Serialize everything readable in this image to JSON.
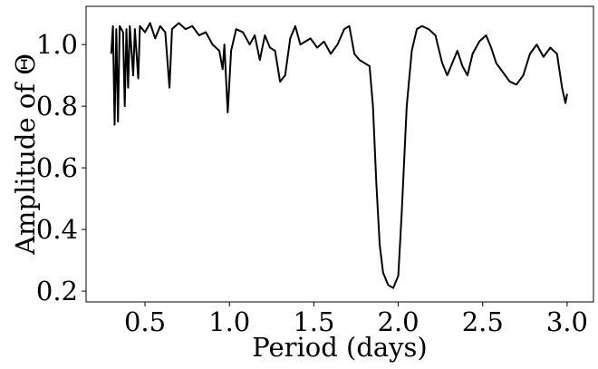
{
  "chart_data": {
    "type": "line",
    "xlabel": "Period (days)",
    "ylabel": "Amplitude of Θ",
    "series": [
      {
        "color": "#000000",
        "x": [
          0.3,
          0.31,
          0.32,
          0.33,
          0.34,
          0.35,
          0.37,
          0.38,
          0.39,
          0.4,
          0.41,
          0.43,
          0.44,
          0.46,
          0.47,
          0.5,
          0.53,
          0.56,
          0.59,
          0.62,
          0.645,
          0.66,
          0.7,
          0.74,
          0.78,
          0.82,
          0.86,
          0.9,
          0.94,
          0.96,
          0.97,
          0.99,
          1.01,
          1.04,
          1.08,
          1.12,
          1.15,
          1.18,
          1.21,
          1.24,
          1.27,
          1.3,
          1.33,
          1.36,
          1.39,
          1.42,
          1.45,
          1.48,
          1.52,
          1.56,
          1.6,
          1.64,
          1.68,
          1.71,
          1.74,
          1.77,
          1.8,
          1.83,
          1.85,
          1.87,
          1.89,
          1.91,
          1.94,
          1.97,
          2.0,
          2.02,
          2.05,
          2.08,
          2.11,
          2.14,
          2.18,
          2.22,
          2.26,
          2.29,
          2.32,
          2.35,
          2.38,
          2.41,
          2.44,
          2.48,
          2.52,
          2.55,
          2.58,
          2.62,
          2.66,
          2.7,
          2.74,
          2.78,
          2.82,
          2.86,
          2.9,
          2.94,
          2.97,
          2.99,
          3.0
        ],
        "values": [
          0.97,
          1.06,
          0.74,
          1.05,
          0.75,
          1.06,
          1.04,
          0.8,
          1.05,
          0.86,
          1.06,
          0.9,
          1.05,
          0.89,
          1.06,
          1.04,
          1.07,
          1.02,
          1.06,
          1.04,
          0.86,
          1.05,
          1.07,
          1.05,
          1.06,
          1.03,
          1.04,
          1.0,
          0.98,
          0.92,
          1.0,
          0.78,
          0.98,
          1.05,
          1.04,
          1.0,
          1.03,
          0.95,
          1.03,
          0.99,
          0.98,
          0.88,
          0.9,
          1.02,
          1.06,
          1.0,
          1.01,
          1.02,
          0.99,
          1.01,
          0.97,
          1.0,
          1.05,
          1.06,
          0.97,
          0.95,
          0.94,
          0.93,
          0.8,
          0.55,
          0.35,
          0.26,
          0.22,
          0.21,
          0.25,
          0.45,
          0.8,
          0.98,
          1.05,
          1.06,
          1.05,
          1.03,
          0.94,
          0.9,
          0.94,
          0.98,
          0.93,
          0.9,
          0.97,
          1.01,
          1.03,
          0.99,
          0.94,
          0.91,
          0.88,
          0.87,
          0.9,
          0.97,
          1.0,
          0.96,
          0.99,
          0.97,
          0.86,
          0.81,
          0.84
        ]
      }
    ],
    "xlim": [
      0.151,
      3.156
    ],
    "ylim": [
      0.165,
      1.124
    ],
    "xticks": [
      0.5,
      {
        "value": 1,
        "label": "1.0"
      },
      1.5,
      {
        "value": 2,
        "label": "2.0"
      },
      2.5,
      {
        "value": 3,
        "label": "3.0"
      }
    ],
    "yticks": [
      0.2,
      0.4,
      0.6,
      0.8,
      {
        "value": 1,
        "label": "1.0"
      }
    ]
  }
}
